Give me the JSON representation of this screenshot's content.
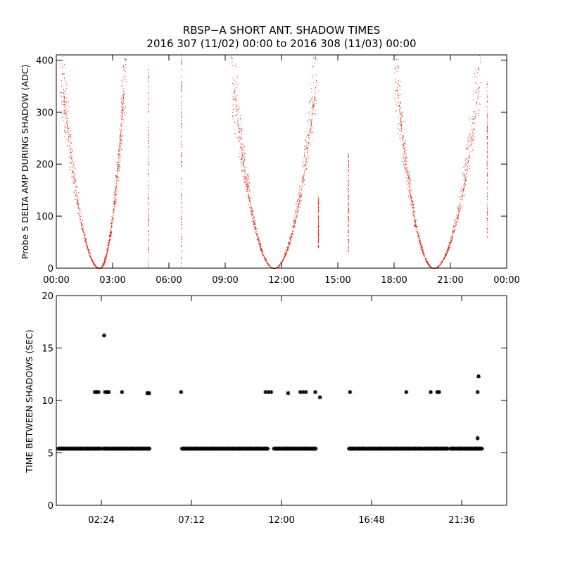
{
  "title": {
    "line1": "RBSP−A SHORT ANT. SHADOW TIMES",
    "line2": "2016 307 (11/02) 00:00 to 2016 308 (11/03) 00:00"
  },
  "colors": {
    "top_points": "#dd2211",
    "bottom_points": "#000000",
    "axis": "#000000"
  },
  "chart_data": [
    {
      "type": "scatter",
      "panel": "top",
      "title": "RBSP−A SHORT ANT. SHADOW TIMES 2016 307 (11/02) 00:00 to 2016 308 (11/03) 00:00",
      "xlabel": "",
      "ylabel": "Probe 5 DELTA AMP DURING SHADOW (ADC)",
      "xlim_hours": [
        0,
        24
      ],
      "ylim": [
        0,
        410
      ],
      "xticks": [
        {
          "label": "00:00",
          "hour": 0
        },
        {
          "label": "03:00",
          "hour": 3
        },
        {
          "label": "06:00",
          "hour": 6
        },
        {
          "label": "09:00",
          "hour": 9
        },
        {
          "label": "12:00",
          "hour": 12
        },
        {
          "label": "15:00",
          "hour": 15
        },
        {
          "label": "18:00",
          "hour": 18
        },
        {
          "label": "21:00",
          "hour": 21
        },
        {
          "label": "00:00",
          "hour": 24
        }
      ],
      "yticks": [
        0,
        100,
        200,
        300,
        400
      ],
      "clusters": [
        {
          "min_hour": 2.3,
          "arm_start_hour": 0.2,
          "arm_end_hour": 3.7,
          "max_y": 410
        },
        {
          "min_hour": 11.6,
          "arm_start_hour": 9.3,
          "arm_end_hour": 13.9,
          "max_y": 410
        },
        {
          "min_hour": 20.1,
          "arm_start_hour": 18.0,
          "arm_end_hour": 22.6,
          "max_y": 410
        }
      ],
      "vertical_streaks": [
        {
          "hour": 4.9,
          "y_from": 0,
          "y_to": 390
        },
        {
          "hour": 6.65,
          "y_from": 0,
          "y_to": 410
        },
        {
          "hour": 15.55,
          "y_from": 30,
          "y_to": 225
        },
        {
          "hour": 13.95,
          "y_from": 40,
          "y_to": 140
        },
        {
          "hour": 22.95,
          "y_from": 60,
          "y_to": 360
        }
      ]
    },
    {
      "type": "scatter",
      "panel": "bottom",
      "xlabel": "",
      "ylabel": "TIME BETWEEN SHADOWS (SEC)",
      "xlim_hours": [
        0,
        24
      ],
      "ylim": [
        0,
        20
      ],
      "xticks": [
        {
          "label": "02:24",
          "hour": 2.4
        },
        {
          "label": "07:12",
          "hour": 7.2
        },
        {
          "label": "12:00",
          "hour": 12.0
        },
        {
          "label": "16:48",
          "hour": 16.8
        },
        {
          "label": "21:36",
          "hour": 21.6
        }
      ],
      "yticks": [
        0,
        5,
        10,
        15,
        20
      ],
      "baseline_value": 5.4,
      "baseline_segments_hours": [
        [
          0.1,
          2.4
        ],
        [
          2.5,
          5.0
        ],
        [
          6.7,
          11.3
        ],
        [
          11.6,
          13.85
        ],
        [
          15.6,
          19.5
        ],
        [
          19.6,
          20.9
        ],
        [
          21.0,
          22.7
        ]
      ],
      "markers": [
        {
          "hour": 2.05,
          "value": 10.8
        },
        {
          "hour": 2.15,
          "value": 10.8
        },
        {
          "hour": 2.25,
          "value": 10.8
        },
        {
          "hour": 2.55,
          "value": 16.2
        },
        {
          "hour": 2.6,
          "value": 10.8
        },
        {
          "hour": 2.7,
          "value": 10.8
        },
        {
          "hour": 2.8,
          "value": 10.8
        },
        {
          "hour": 3.5,
          "value": 10.8
        },
        {
          "hour": 4.85,
          "value": 10.7
        },
        {
          "hour": 4.95,
          "value": 10.7
        },
        {
          "hour": 6.65,
          "value": 10.8
        },
        {
          "hour": 11.15,
          "value": 10.8
        },
        {
          "hour": 11.3,
          "value": 10.8
        },
        {
          "hour": 11.45,
          "value": 10.8
        },
        {
          "hour": 12.35,
          "value": 10.7
        },
        {
          "hour": 13.0,
          "value": 10.8
        },
        {
          "hour": 13.15,
          "value": 10.8
        },
        {
          "hour": 13.3,
          "value": 10.8
        },
        {
          "hour": 13.8,
          "value": 10.8
        },
        {
          "hour": 14.05,
          "value": 10.3
        },
        {
          "hour": 15.65,
          "value": 10.8
        },
        {
          "hour": 18.65,
          "value": 10.8
        },
        {
          "hour": 19.95,
          "value": 10.8
        },
        {
          "hour": 20.3,
          "value": 10.8
        },
        {
          "hour": 20.4,
          "value": 10.8
        },
        {
          "hour": 22.45,
          "value": 10.8
        },
        {
          "hour": 22.5,
          "value": 12.3
        },
        {
          "hour": 22.45,
          "value": 6.4
        }
      ]
    }
  ]
}
